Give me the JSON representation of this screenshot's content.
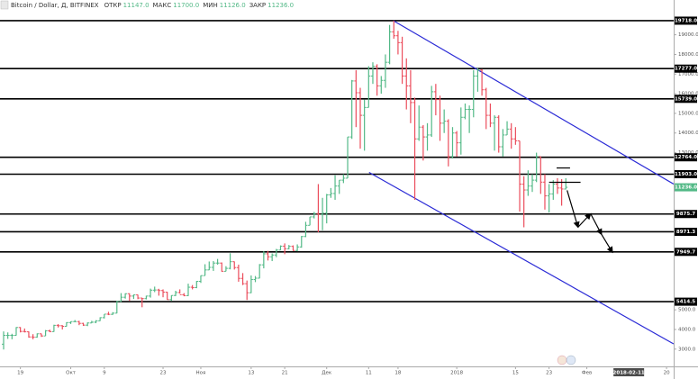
{
  "chart_data": {
    "type": "ohlc",
    "title": "Bitcoin / Dollar, Д, BITFINEX",
    "legend_fields": [
      {
        "label": "ОТКР",
        "value": "11147.0"
      },
      {
        "label": "МАКС",
        "value": "11700.0"
      },
      {
        "label": "МИН",
        "value": "11126.0"
      },
      {
        "label": "ЗАКР",
        "value": "11236.0"
      }
    ],
    "up_color": "#53b987",
    "down_color": "#eb4d5c",
    "ohlc": [
      [
        3250,
        3900,
        2980,
        3700
      ],
      [
        3700,
        3850,
        3520,
        3700
      ],
      [
        3700,
        3780,
        3500,
        3700
      ],
      [
        3700,
        4120,
        3690,
        4100
      ],
      [
        4100,
        4120,
        3850,
        3900
      ],
      [
        3900,
        4050,
        3850,
        3880
      ],
      [
        3880,
        3900,
        3580,
        3620
      ],
      [
        3620,
        3760,
        3500,
        3610
      ],
      [
        3610,
        3800,
        3580,
        3780
      ],
      [
        3780,
        3790,
        3620,
        3670
      ],
      [
        3670,
        3970,
        3670,
        3930
      ],
      [
        3930,
        3990,
        3860,
        3890
      ],
      [
        3890,
        4240,
        3880,
        4210
      ],
      [
        4210,
        4270,
        4100,
        4190
      ],
      [
        4190,
        4220,
        4000,
        4160
      ],
      [
        4160,
        4370,
        4150,
        4350
      ],
      [
        4350,
        4410,
        4280,
        4400
      ],
      [
        4400,
        4480,
        4370,
        4400
      ],
      [
        4400,
        4440,
        4220,
        4310
      ],
      [
        4310,
        4340,
        4180,
        4220
      ],
      [
        4220,
        4360,
        4170,
        4330
      ],
      [
        4330,
        4440,
        4320,
        4370
      ],
      [
        4370,
        4470,
        4320,
        4440
      ],
      [
        4440,
        4620,
        4430,
        4600
      ],
      [
        4600,
        4780,
        4560,
        4780
      ],
      [
        4780,
        4900,
        4730,
        4770
      ],
      [
        4770,
        4880,
        4740,
        4830
      ],
      [
        4830,
        5450,
        4820,
        5430
      ],
      [
        5430,
        5850,
        5400,
        5640
      ],
      [
        5640,
        5840,
        5570,
        5820
      ],
      [
        5820,
        5840,
        5450,
        5700
      ],
      [
        5700,
        5780,
        5550,
        5760
      ],
      [
        5760,
        5770,
        5540,
        5600
      ],
      [
        5600,
        5610,
        5130,
        5570
      ],
      [
        5570,
        5720,
        5530,
        5700
      ],
      [
        5700,
        6080,
        5620,
        6000
      ],
      [
        6000,
        6180,
        5900,
        6010
      ],
      [
        6010,
        6070,
        5720,
        5980
      ],
      [
        5980,
        6040,
        5640,
        5900
      ],
      [
        5900,
        5920,
        5510,
        5520
      ],
      [
        5520,
        5740,
        5450,
        5730
      ],
      [
        5730,
        5970,
        5700,
        5880
      ],
      [
        5880,
        6040,
        5830,
        5770
      ],
      [
        5770,
        5850,
        5690,
        5720
      ],
      [
        5720,
        6330,
        5700,
        6150
      ],
      [
        6150,
        6260,
        6040,
        6130
      ],
      [
        6130,
        6470,
        6100,
        6450
      ],
      [
        6450,
        6750,
        6370,
        6740
      ],
      [
        6740,
        7320,
        6740,
        7030
      ],
      [
        7030,
        7460,
        7020,
        7160
      ],
      [
        7160,
        7480,
        6980,
        7380
      ],
      [
        7380,
        7590,
        7300,
        7380
      ],
      [
        7380,
        7410,
        6940,
        6960
      ],
      [
        6960,
        7220,
        6960,
        7110
      ],
      [
        7110,
        7880,
        7060,
        7450
      ],
      [
        7450,
        7460,
        7050,
        7150
      ],
      [
        7150,
        7300,
        6430,
        6600
      ],
      [
        6600,
        6870,
        6260,
        6330
      ],
      [
        6330,
        6490,
        5500,
        5870
      ],
      [
        5870,
        6750,
        5850,
        6540
      ],
      [
        6540,
        6720,
        6410,
        6610
      ],
      [
        6610,
        7330,
        6600,
        7290
      ],
      [
        7290,
        7980,
        7110,
        7850
      ],
      [
        7850,
        8000,
        7510,
        7700
      ],
      [
        7700,
        7870,
        7480,
        7790
      ],
      [
        7790,
        8100,
        7680,
        8040
      ],
      [
        8040,
        8280,
        8030,
        8240
      ],
      [
        8240,
        8380,
        7830,
        8110
      ],
      [
        8110,
        8300,
        8080,
        8230
      ],
      [
        8230,
        8280,
        8000,
        8020
      ],
      [
        8020,
        8330,
        7980,
        8200
      ],
      [
        8200,
        8760,
        8160,
        8730
      ],
      [
        8730,
        9480,
        8700,
        9300
      ],
      [
        9300,
        9730,
        9300,
        9730
      ],
      [
        9730,
        9980,
        9650,
        9900
      ],
      [
        9900,
        11400,
        8950,
        9850
      ],
      [
        9850,
        10700,
        9050,
        9920
      ],
      [
        9920,
        10900,
        9400,
        10850
      ],
      [
        10850,
        11200,
        10700,
        10920
      ],
      [
        10920,
        11850,
        10600,
        11300
      ],
      [
        11300,
        11600,
        10900,
        11600
      ],
      [
        11600,
        11900,
        11450,
        11700
      ],
      [
        11700,
        13800,
        11700,
        13800
      ],
      [
        13800,
        16700,
        13700,
        16650
      ],
      [
        16650,
        17200,
        14300,
        16050
      ],
      [
        16050,
        16300,
        13200,
        14900
      ],
      [
        14900,
        15700,
        13100,
        15300
      ],
      [
        15300,
        17400,
        15300,
        16900
      ],
      [
        16900,
        17600,
        16500,
        17400
      ],
      [
        17400,
        17500,
        15900,
        16400
      ],
      [
        16400,
        16900,
        16000,
        16680
      ],
      [
        16680,
        18000,
        16300,
        17600
      ],
      [
        17600,
        19500,
        17500,
        19150
      ],
      [
        19150,
        19718,
        18800,
        18950
      ],
      [
        18950,
        19200,
        18000,
        18600
      ],
      [
        18600,
        18900,
        16500,
        16900
      ],
      [
        16900,
        17800,
        15200,
        16400
      ],
      [
        16400,
        17200,
        14500,
        15550
      ],
      [
        15550,
        15800,
        10600,
        13700
      ],
      [
        13700,
        15400,
        13600,
        14300
      ],
      [
        14300,
        14400,
        12600,
        13800
      ],
      [
        13800,
        14500,
        13100,
        13900
      ],
      [
        13900,
        16400,
        13800,
        16100
      ],
      [
        16100,
        16500,
        14900,
        15700
      ],
      [
        15700,
        15900,
        13600,
        14500
      ],
      [
        14500,
        15200,
        14000,
        14600
      ],
      [
        14600,
        14700,
        12300,
        12800
      ],
      [
        12800,
        14300,
        12700,
        14000
      ],
      [
        14000,
        14100,
        12800,
        13500
      ],
      [
        13500,
        15300,
        12900,
        14800
      ],
      [
        14800,
        15500,
        14700,
        15200
      ],
      [
        15200,
        15400,
        14000,
        15200
      ],
      [
        15200,
        17200,
        14800,
        16900
      ],
      [
        16900,
        17300,
        16100,
        17200
      ],
      [
        17200,
        17250,
        15900,
        16200
      ],
      [
        16200,
        16300,
        14200,
        14900
      ],
      [
        14900,
        15500,
        14300,
        14500
      ],
      [
        14500,
        14900,
        13100,
        14800
      ],
      [
        14800,
        14900,
        13000,
        13300
      ],
      [
        13300,
        14200,
        12800,
        13900
      ],
      [
        13900,
        14600,
        13900,
        14200
      ],
      [
        14200,
        14500,
        13200,
        13700
      ],
      [
        13700,
        14300,
        13400,
        13600
      ],
      [
        13600,
        13600,
        10000,
        11400
      ],
      [
        11400,
        11800,
        9200,
        11100
      ],
      [
        11100,
        12100,
        10800,
        11300
      ],
      [
        11300,
        11900,
        11000,
        11600
      ],
      [
        11600,
        13000,
        11500,
        12800
      ],
      [
        12800,
        12800,
        10900,
        11500
      ],
      [
        11500,
        11900,
        10100,
        10800
      ],
      [
        10800,
        11400,
        9950,
        10900
      ],
      [
        10900,
        11600,
        10600,
        11400
      ],
      [
        11400,
        11700,
        10900,
        11200
      ],
      [
        11200,
        11650,
        10300,
        11150
      ],
      [
        11147,
        11700,
        11126,
        11236
      ]
    ],
    "xlim": [
      -0.86,
      159.7
    ],
    "xticks": [
      {
        "value": 4,
        "label": "19"
      },
      {
        "value": 16,
        "label": "Окт"
      },
      {
        "value": 24,
        "label": "9"
      },
      {
        "value": 38,
        "label": "23"
      },
      {
        "value": 47,
        "label": "Ноя"
      },
      {
        "value": 59,
        "label": "13"
      },
      {
        "value": 67,
        "label": "21"
      },
      {
        "value": 77,
        "label": "Дек"
      },
      {
        "value": 87,
        "label": "11"
      },
      {
        "value": 94,
        "label": "18"
      },
      {
        "value": 108,
        "label": "2018"
      },
      {
        "value": 122,
        "label": "15"
      },
      {
        "value": 130,
        "label": "23"
      },
      {
        "value": 139,
        "label": "Фев"
      },
      {
        "value": 158,
        "label": "20"
      }
    ],
    "cursor_x": {
      "value": 149,
      "label": "2018-02-11"
    },
    "ylim": [
      2120,
      20770
    ],
    "yticks": [
      {
        "value": 19000,
        "label": "19000.0"
      },
      {
        "value": 18000,
        "label": "18000.0"
      },
      {
        "value": 17000,
        "label": "17000.0"
      },
      {
        "value": 16000,
        "label": "16000.0"
      },
      {
        "value": 15000,
        "label": "15000.0"
      },
      {
        "value": 14000,
        "label": "14000.0"
      },
      {
        "value": 13000,
        "label": "13000.0"
      },
      {
        "value": 5000,
        "label": "5000.0"
      },
      {
        "value": 4000,
        "label": "4000.0"
      },
      {
        "value": 3000,
        "label": "3000.0"
      }
    ],
    "levels": [
      {
        "value": 19718,
        "label": "19718.0"
      },
      {
        "value": 17277,
        "label": "17277.0"
      },
      {
        "value": 15739,
        "label": "15739.0"
      },
      {
        "value": 12764,
        "label": "12764.0"
      },
      {
        "value": 11903,
        "label": "11903.0"
      },
      {
        "value": 9875.7,
        "label": "9875.7"
      },
      {
        "value": 8971.3,
        "label": "8971.3"
      },
      {
        "value": 7949.7,
        "label": "7949.7"
      },
      {
        "value": 5414.5,
        "label": "5414.5"
      }
    ],
    "level_color": "#000000",
    "last_price": {
      "value": 11236,
      "label": "11236.0"
    },
    "trend_lines": [
      {
        "x": [
          92.9,
          159.7
        ],
        "y": [
          19718,
          11400
        ]
      },
      {
        "x": [
          87.1,
          159.7
        ],
        "y": [
          11994,
          3264
        ]
      }
    ],
    "trend_color": "#2b2bd6",
    "projection": {
      "x": [
        134.3,
        136.9,
        139.9,
        142.5,
        145.1
      ],
      "y": [
        11080,
        9206,
        9892,
        8840,
        7926
      ]
    },
    "segments": [
      {
        "x": [
          131.8,
          135
        ],
        "y": [
          12220,
          12220
        ]
      },
      {
        "x": [
          130,
          137.5
        ],
        "y": [
          11490,
          11490
        ]
      }
    ]
  }
}
